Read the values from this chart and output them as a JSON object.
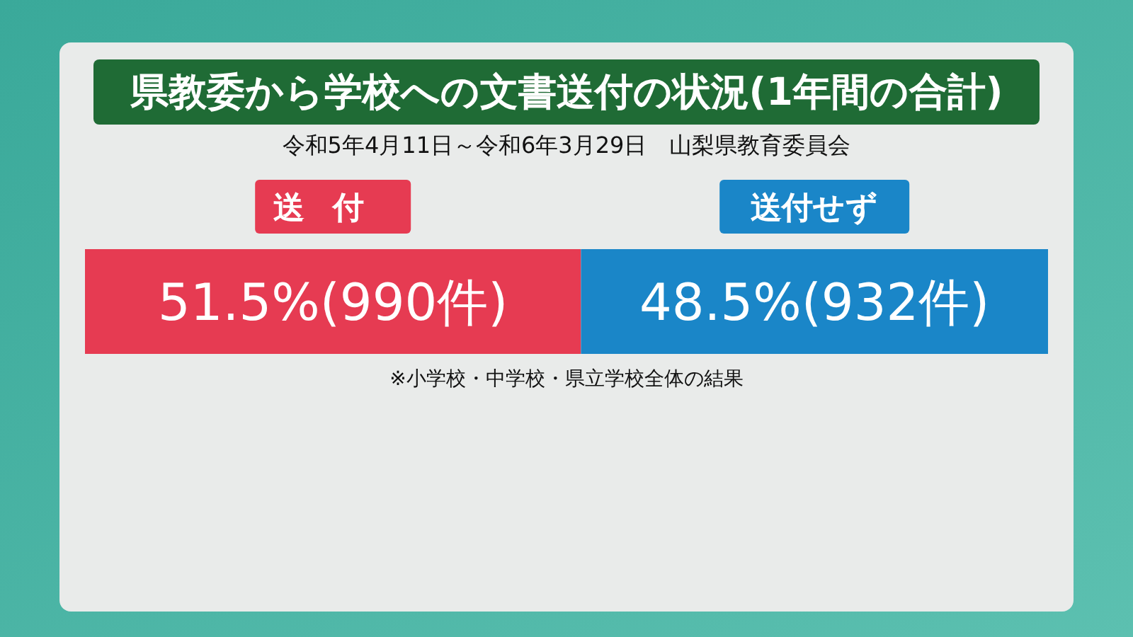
{
  "chart_data": {
    "type": "bar",
    "orientation": "horizontal",
    "stacked": true,
    "relative": false,
    "title": "県教委から学校への文書送付の状況(1年間の合計)",
    "subtitle": "令和5年4月11日～令和6年3月29日　山梨県教育委員会",
    "annotations": [
      "※小学校・中学校・県立学校全体の結果"
    ],
    "categories": [
      null
    ],
    "xlim": [
      0,
      100
    ],
    "tick_labels": false,
    "series": [
      {
        "name": "送付",
        "color": "#e63b52",
        "values": [
          51.5
        ],
        "value_labels": [
          "51.5%(990件)"
        ]
      },
      {
        "name": "送付せず",
        "color": "#1a86c8",
        "values": [
          48.5
        ],
        "value_labels": [
          "48.5%(932件)"
        ]
      }
    ]
  }
}
